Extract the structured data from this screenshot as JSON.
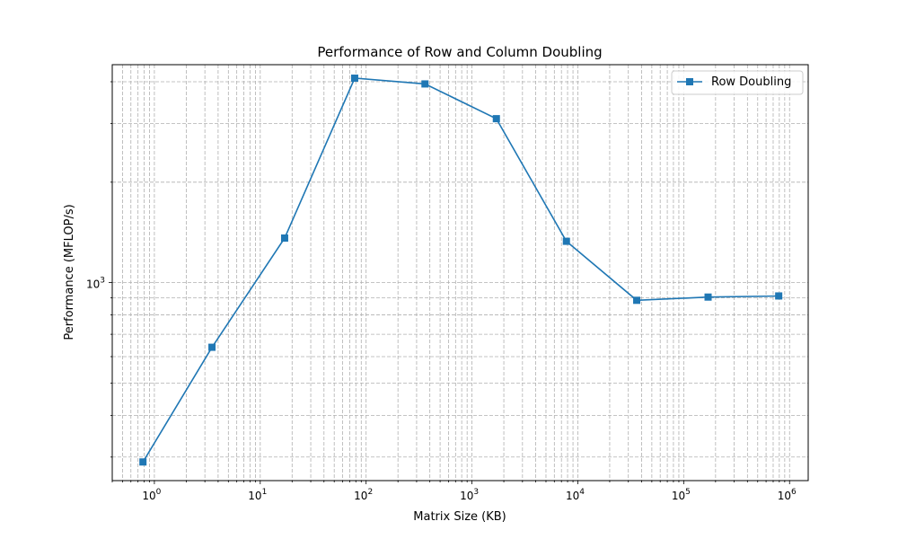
{
  "chart_data": {
    "type": "line",
    "title": "Performance of Row and Column Doubling",
    "xlabel": "Matrix Size (KB)",
    "ylabel": "Performance (MFLOP/s)",
    "x_scale": "log",
    "y_scale": "log",
    "xlim": [
      0.4,
      1500000
    ],
    "ylim": [
      255,
      4500
    ],
    "grid": true,
    "legend_position": "top-right",
    "x_ticks": [
      {
        "value": 1,
        "base": "10",
        "exp": "0"
      },
      {
        "value": 10,
        "base": "10",
        "exp": "1"
      },
      {
        "value": 100,
        "base": "10",
        "exp": "2"
      },
      {
        "value": 1000,
        "base": "10",
        "exp": "3"
      },
      {
        "value": 10000,
        "base": "10",
        "exp": "4"
      },
      {
        "value": 100000,
        "base": "10",
        "exp": "5"
      },
      {
        "value": 1000000,
        "base": "10",
        "exp": "6"
      }
    ],
    "y_ticks": [
      {
        "value": 1000,
        "base": "10",
        "exp": "3"
      }
    ],
    "series": [
      {
        "name": "Row Doubling",
        "color": "#1f77b4",
        "marker": "square",
        "x": [
          0.78,
          3.5,
          17,
          78,
          360,
          1700,
          7800,
          36000,
          170000,
          790000
        ],
        "y": [
          290,
          640,
          1360,
          4100,
          3940,
          3100,
          1330,
          885,
          905,
          912
        ]
      }
    ]
  }
}
